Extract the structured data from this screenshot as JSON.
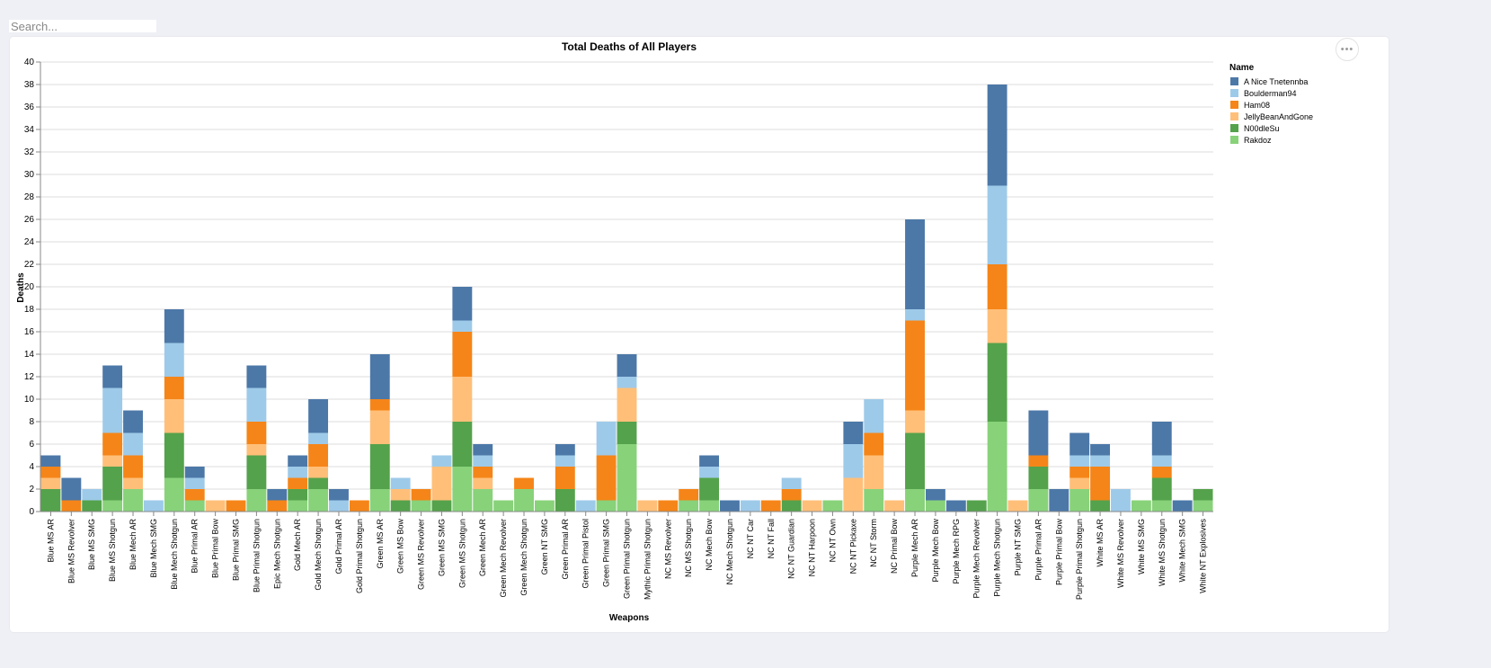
{
  "search": {
    "placeholder": "Search..."
  },
  "menu": {
    "icon": "more-horizontal-icon",
    "glyph": "•••"
  },
  "chart_data": {
    "type": "bar",
    "stacked": true,
    "title": "Total Deaths of All Players",
    "xlabel": "Weapons",
    "ylabel": "Deaths",
    "ylim": [
      0,
      40
    ],
    "yticks": [
      0,
      2,
      4,
      6,
      8,
      10,
      12,
      14,
      16,
      18,
      20,
      22,
      24,
      26,
      28,
      30,
      32,
      34,
      36,
      38,
      40
    ],
    "grid": true,
    "legend": {
      "title": "Name",
      "placement": "top-right"
    },
    "categories": [
      "Blue MS AR",
      "Blue MS Revolver",
      "Blue MS SMG",
      "Blue MS Shotgun",
      "Blue Mech AR",
      "Blue Mech SMG",
      "Blue Mech Shotgun",
      "Blue Primal AR",
      "Blue Primal Bow",
      "Blue Primal SMG",
      "Blue Primal Shotgun",
      "Epic Mech Shotgun",
      "Gold Mech AR",
      "Gold Mech Shotgun",
      "Gold Primal AR",
      "Gold Primal Shotgun",
      "Green MS AR",
      "Green MS Bow",
      "Green MS Revolver",
      "Green MS SMG",
      "Green MS Shotgun",
      "Green Mech AR",
      "Green Mech Revolver",
      "Green Mech Shotgun",
      "Green NT SMG",
      "Green Primal AR",
      "Green Primal Pistol",
      "Green Primal SMG",
      "Green Primal Shotgun",
      "Mythic Primal Shotgun",
      "NC MS Revolver",
      "NC MS Shotgun",
      "NC Mech Bow",
      "NC Mech Shotgun",
      "NC NT Car",
      "NC NT Fall",
      "NC NT Guardian",
      "NC NT Harpoon",
      "NC NT Own",
      "NC NT Pickaxe",
      "NC NT Storm",
      "NC Primal Bow",
      "Purple Mech AR",
      "Purple Mech Bow",
      "Purple Mech RPG",
      "Purple Mech Revolver",
      "Purple Mech Shotgun",
      "Purple NT SMG",
      "Purple Primal AR",
      "Purple Primal Bow",
      "Purple Primal Shotgun",
      "White MS AR",
      "White MS Revolver",
      "White MS SMG",
      "White MS Shotgun",
      "White Mech SMG",
      "White NT Explosives"
    ],
    "series": [
      {
        "name": "Rakdoz",
        "color": "#88d27a",
        "values": [
          0,
          0,
          0,
          1,
          2,
          0,
          3,
          1,
          0,
          0,
          2,
          0,
          1,
          2,
          0,
          0,
          2,
          0,
          1,
          0,
          4,
          2,
          1,
          2,
          1,
          0,
          0,
          1,
          6,
          0,
          0,
          1,
          1,
          0,
          0,
          0,
          0,
          0,
          1,
          0,
          2,
          0,
          2,
          1,
          0,
          0,
          8,
          0,
          2,
          0,
          2,
          0,
          0,
          1,
          1,
          0,
          1
        ]
      },
      {
        "name": "N00dleSu",
        "color": "#54a24b",
        "values": [
          2,
          0,
          1,
          3,
          0,
          0,
          4,
          0,
          0,
          0,
          3,
          0,
          1,
          1,
          0,
          0,
          4,
          1,
          0,
          1,
          4,
          0,
          0,
          0,
          0,
          2,
          0,
          0,
          2,
          0,
          0,
          0,
          2,
          0,
          0,
          0,
          1,
          0,
          0,
          0,
          0,
          0,
          5,
          0,
          0,
          1,
          7,
          0,
          2,
          0,
          0,
          1,
          0,
          0,
          2,
          0,
          1
        ]
      },
      {
        "name": "JellyBeanAndGone",
        "color": "#ffbf79",
        "values": [
          1,
          0,
          0,
          1,
          1,
          0,
          3,
          0,
          1,
          0,
          1,
          0,
          0,
          1,
          0,
          0,
          3,
          1,
          0,
          3,
          4,
          1,
          0,
          0,
          0,
          0,
          0,
          0,
          3,
          1,
          0,
          0,
          0,
          0,
          0,
          0,
          0,
          1,
          0,
          3,
          3,
          1,
          2,
          0,
          0,
          0,
          3,
          1,
          0,
          0,
          1,
          0,
          0,
          0,
          0,
          0,
          0
        ]
      },
      {
        "name": "Ham08",
        "color": "#f58518",
        "values": [
          1,
          1,
          0,
          2,
          2,
          0,
          2,
          1,
          0,
          1,
          2,
          1,
          1,
          2,
          0,
          1,
          1,
          0,
          1,
          0,
          4,
          1,
          0,
          1,
          0,
          2,
          0,
          4,
          0,
          0,
          1,
          1,
          0,
          0,
          0,
          1,
          1,
          0,
          0,
          0,
          2,
          0,
          8,
          0,
          0,
          0,
          4,
          0,
          1,
          0,
          1,
          3,
          0,
          0,
          1,
          0,
          0
        ]
      },
      {
        "name": "Boulderman94",
        "color": "#9ecae9",
        "values": [
          0,
          0,
          1,
          4,
          2,
          1,
          3,
          1,
          0,
          0,
          3,
          0,
          1,
          1,
          1,
          0,
          0,
          1,
          0,
          1,
          1,
          1,
          0,
          0,
          0,
          1,
          1,
          3,
          1,
          0,
          0,
          0,
          1,
          0,
          1,
          0,
          1,
          0,
          0,
          3,
          3,
          0,
          1,
          0,
          0,
          0,
          7,
          0,
          0,
          0,
          1,
          1,
          2,
          0,
          1,
          0,
          0
        ]
      },
      {
        "name": "A Nice Tnetennba",
        "color": "#4c78a8",
        "values": [
          1,
          2,
          0,
          2,
          2,
          0,
          3,
          1,
          0,
          0,
          2,
          1,
          1,
          3,
          1,
          0,
          4,
          0,
          0,
          0,
          3,
          1,
          0,
          0,
          0,
          1,
          0,
          0,
          2,
          0,
          0,
          0,
          1,
          1,
          0,
          0,
          0,
          0,
          0,
          2,
          0,
          0,
          8,
          1,
          1,
          0,
          9,
          0,
          4,
          2,
          2,
          1,
          0,
          0,
          3,
          1,
          0
        ]
      }
    ]
  }
}
